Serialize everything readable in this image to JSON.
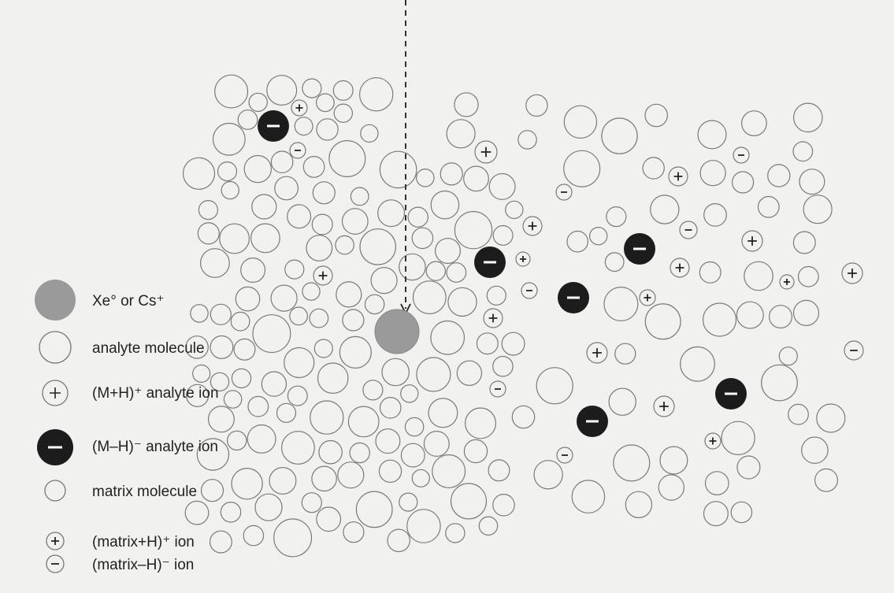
{
  "legend": {
    "items": [
      {
        "label": "Xe° or Cs⁺"
      },
      {
        "label": "analyte molecule"
      },
      {
        "label": "(M+H)⁺ analyte ion"
      },
      {
        "label": "(M–H)⁻ analyte ion"
      },
      {
        "label": "matrix molecule"
      },
      {
        "label": "(matrix+H)⁺ ion"
      },
      {
        "label": "(matrix–H)⁻ ion"
      }
    ]
  }
}
